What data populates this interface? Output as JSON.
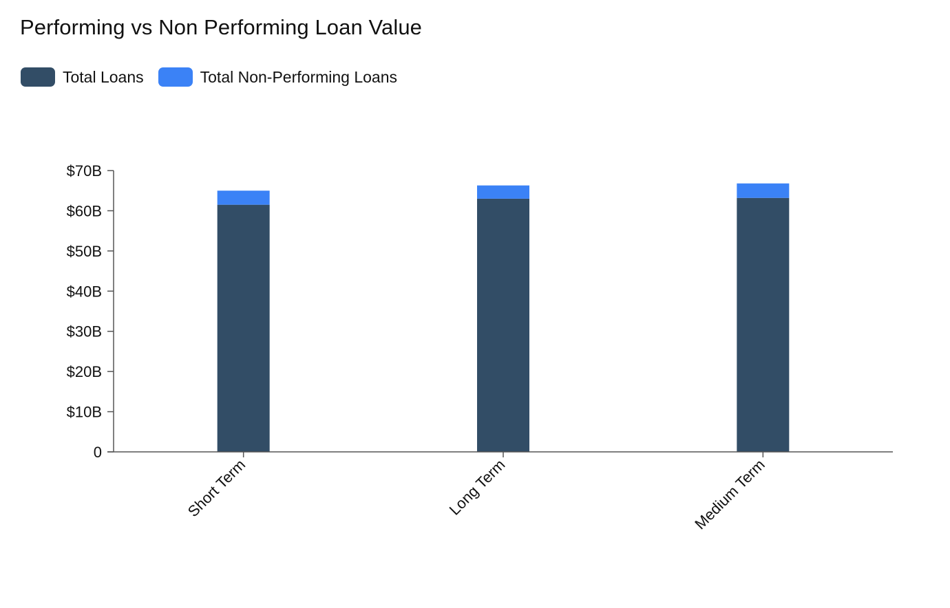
{
  "chart_data": {
    "type": "bar",
    "stacked": true,
    "title": "Performing vs Non Performing Loan Value",
    "xlabel": "",
    "ylabel": "",
    "categories": [
      "Short Term",
      "Long Term",
      "Medium Term"
    ],
    "series": [
      {
        "name": "Total Loans",
        "color": "#324d66",
        "values": [
          61.5,
          63.0,
          63.2
        ]
      },
      {
        "name": "Total Non-Performing Loans",
        "color": "#3b82f6",
        "values": [
          3.5,
          3.3,
          3.6
        ]
      }
    ],
    "ylim": [
      0,
      70
    ],
    "yticks": [
      0,
      10,
      20,
      30,
      40,
      50,
      60,
      70
    ],
    "ytick_labels": [
      "0",
      "$10B",
      "$20B",
      "$30B",
      "$40B",
      "$50B",
      "$60B",
      "$70B"
    ],
    "legend": "top-left",
    "grid": false
  }
}
